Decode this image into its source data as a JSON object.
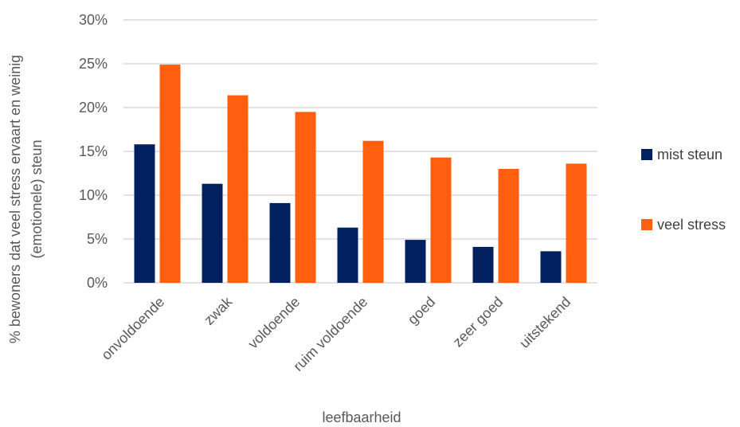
{
  "chart_data": {
    "type": "bar",
    "title": "",
    "xlabel": "leefbaarheid",
    "ylabel_lines": [
      "% bewoners dat veel stress ervaart en weinig",
      "(emotionele) steun"
    ],
    "categories": [
      "onvoldoende",
      "zwak",
      "voldoende",
      "ruim voldoende",
      "goed",
      "zeer goed",
      "uitstekend"
    ],
    "series": [
      {
        "name": "mist steun",
        "color": "#002060",
        "values": [
          15.8,
          11.3,
          9.1,
          6.3,
          4.9,
          4.1,
          3.6
        ]
      },
      {
        "name": "veel stress",
        "color": "#FF5F0F",
        "values": [
          24.9,
          21.4,
          19.5,
          16.2,
          14.3,
          13.0,
          13.6
        ]
      }
    ],
    "ylim": [
      0,
      30
    ],
    "yticks": [
      {
        "value": 0,
        "label": "0%"
      },
      {
        "value": 5,
        "label": "5%"
      },
      {
        "value": 10,
        "label": "10%"
      },
      {
        "value": 15,
        "label": "15%"
      },
      {
        "value": 20,
        "label": "20%"
      },
      {
        "value": 25,
        "label": "25%"
      },
      {
        "value": 30,
        "label": "30%"
      }
    ],
    "grid": true,
    "gridColor": "#d9d9d9",
    "legend": "right"
  }
}
